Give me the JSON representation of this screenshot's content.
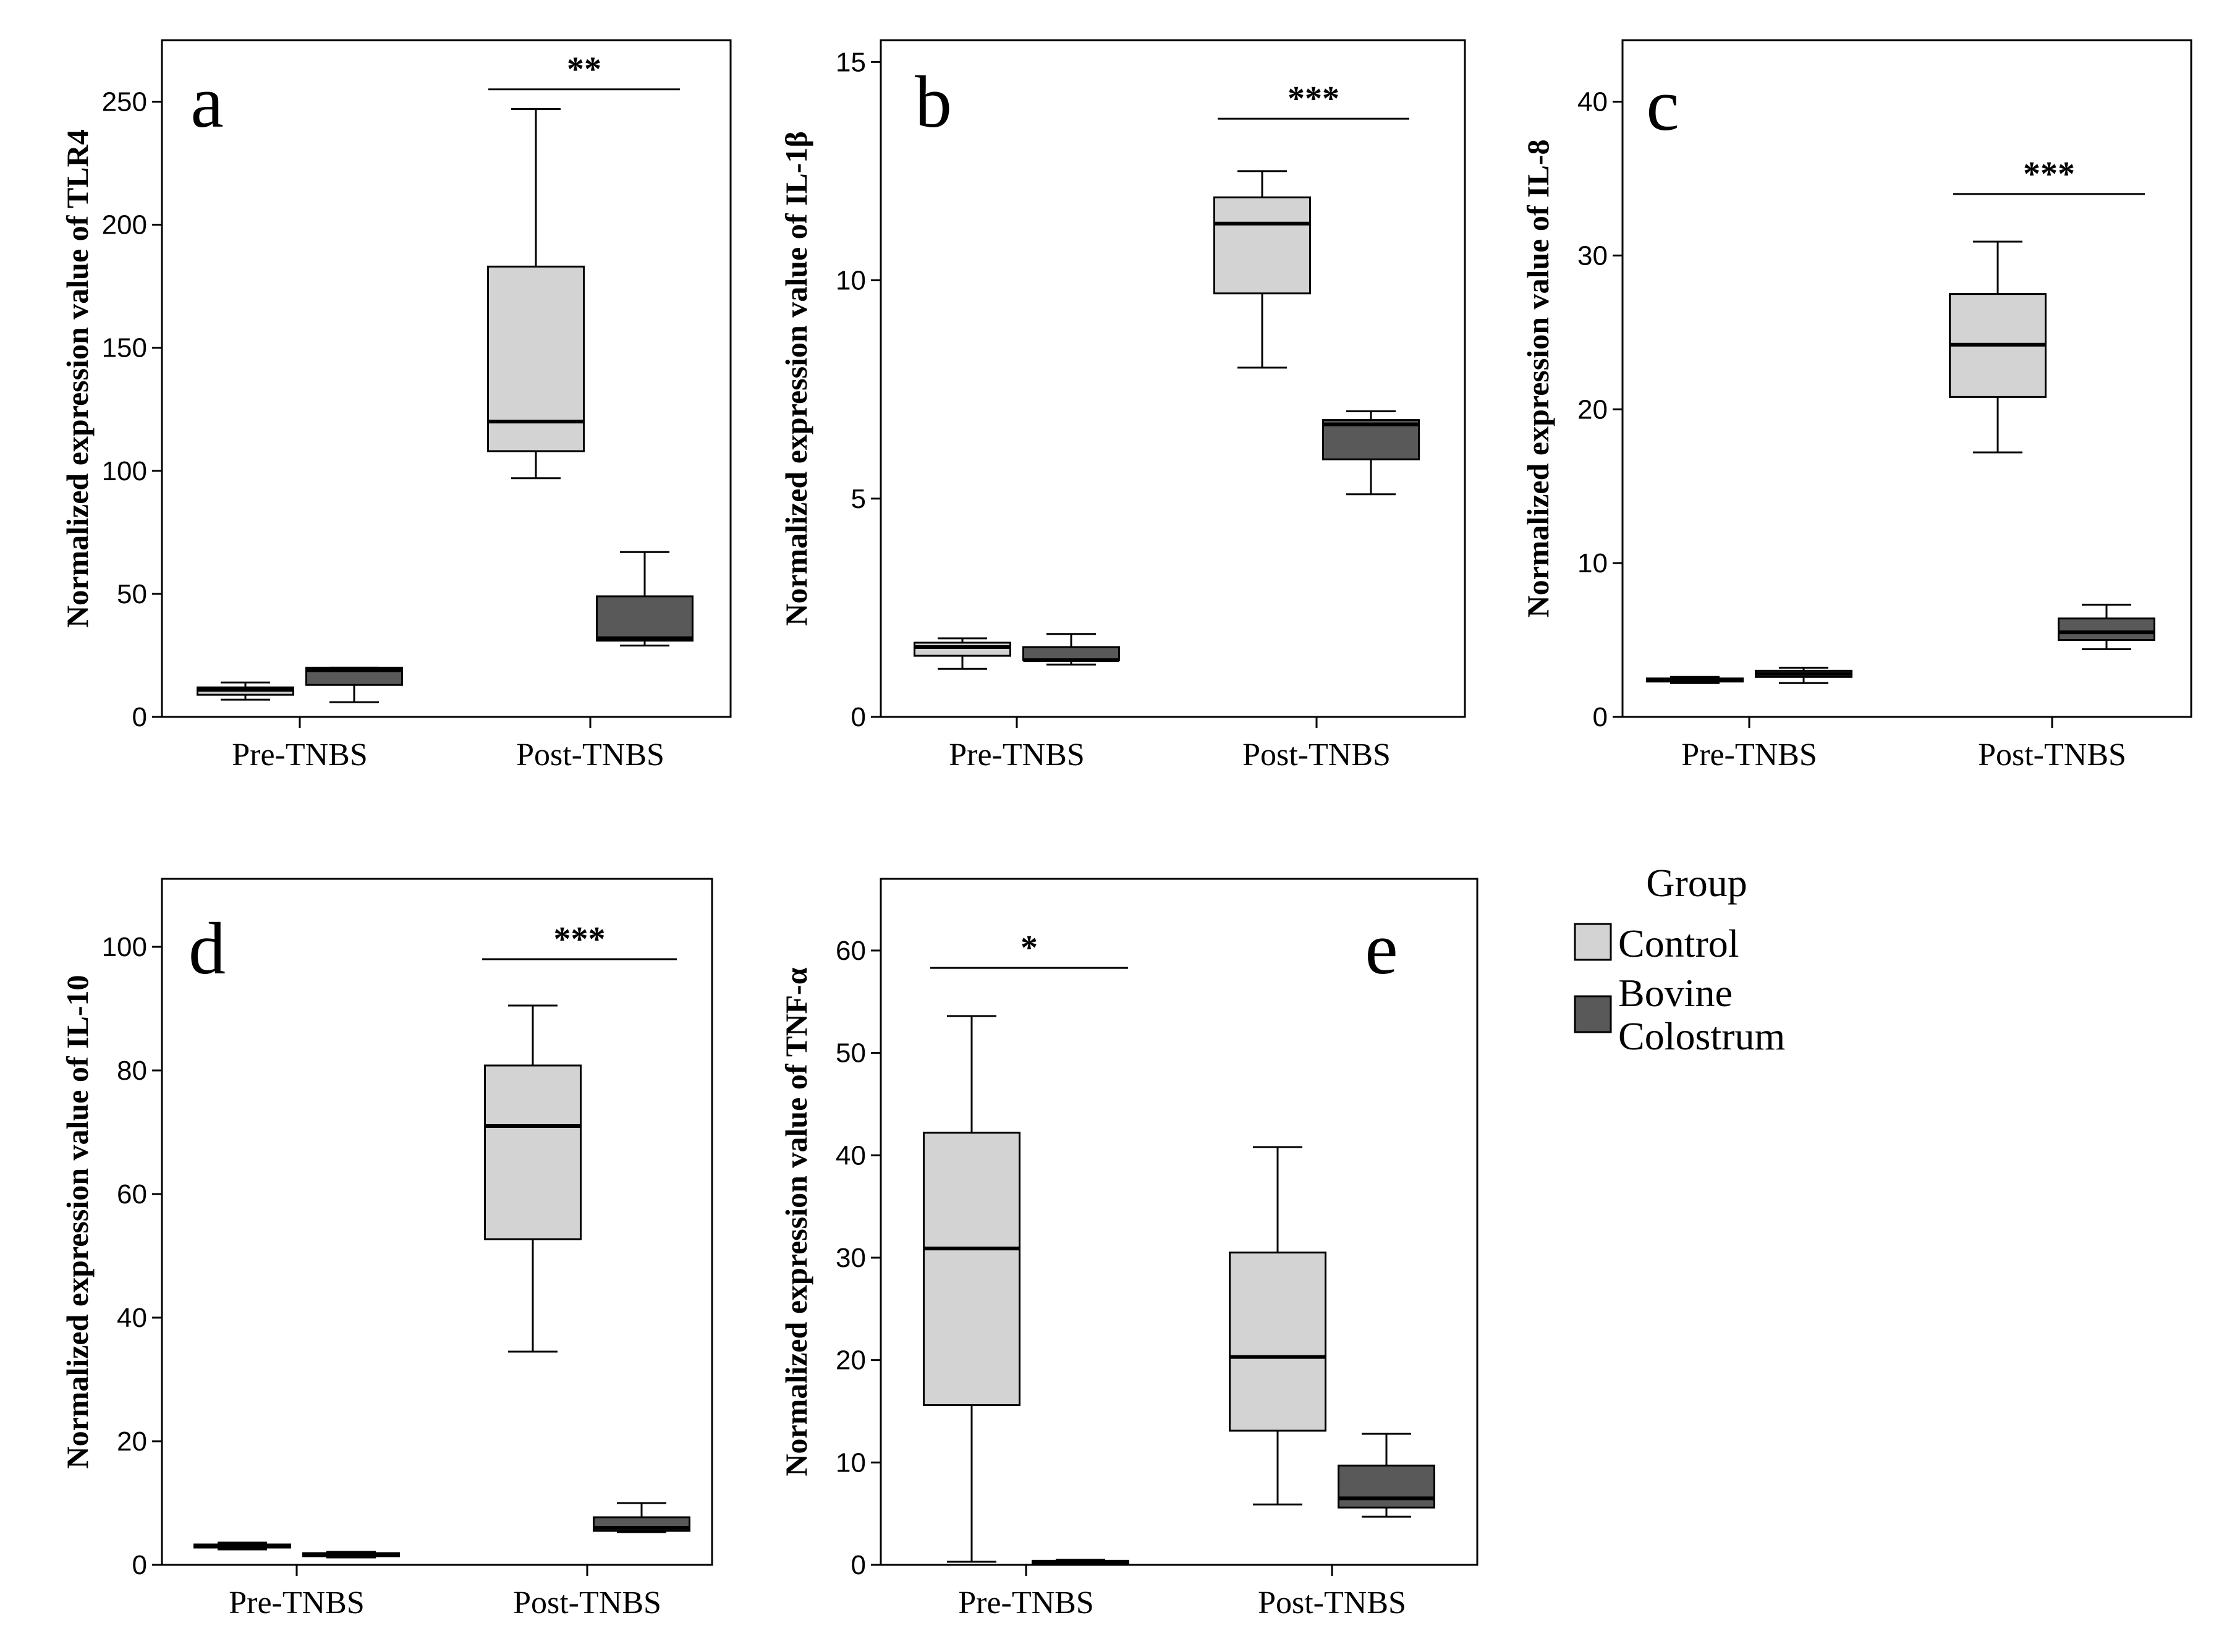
{
  "legend": {
    "title": "Group",
    "items": [
      {
        "label_lines": [
          "Control"
        ],
        "color": "#d3d3d3"
      },
      {
        "label_lines": [
          "Bovine",
          "Colostrum"
        ],
        "color": "#595959"
      }
    ]
  },
  "chart_data": [
    {
      "type": "box",
      "panel_letter": "a",
      "ylabel": "Normalized expression value of TLR4",
      "categories": [
        "Pre-TNBS",
        "Post-TNBS"
      ],
      "ylim": [
        0,
        275
      ],
      "yticks": [
        0,
        50,
        100,
        150,
        200,
        250
      ],
      "series": [
        {
          "name": "Control",
          "boxes": [
            {
              "min": 7,
              "q1": 9,
              "median": 11,
              "q3": 12,
              "max": 14
            },
            {
              "min": 97,
              "q1": 108,
              "median": 120,
              "q3": 183,
              "max": 247
            }
          ]
        },
        {
          "name": "Bovine Colostrum",
          "boxes": [
            {
              "min": 6,
              "q1": 13,
              "median": 19,
              "q3": 20,
              "max": 20
            },
            {
              "min": 29,
              "q1": 31,
              "median": 32,
              "q3": 49,
              "max": 67
            }
          ]
        }
      ],
      "significance": {
        "category": 1,
        "label": "**",
        "value": 255
      }
    },
    {
      "type": "box",
      "panel_letter": "b",
      "ylabel": "Normalized expression value of IL-1β",
      "categories": [
        "Pre-TNBS",
        "Post-TNBS"
      ],
      "ylim": [
        0,
        15.5
      ],
      "yticks": [
        0,
        5,
        10,
        15
      ],
      "series": [
        {
          "name": "Control",
          "boxes": [
            {
              "min": 1.1,
              "q1": 1.4,
              "median": 1.6,
              "q3": 1.7,
              "max": 1.8
            },
            {
              "min": 8.0,
              "q1": 9.7,
              "median": 11.3,
              "q3": 11.9,
              "max": 12.5
            }
          ]
        },
        {
          "name": "Bovine Colostrum",
          "boxes": [
            {
              "min": 1.2,
              "q1": 1.3,
              "median": 1.3,
              "q3": 1.6,
              "max": 1.9
            },
            {
              "min": 5.1,
              "q1": 5.9,
              "median": 6.7,
              "q3": 6.8,
              "max": 7.0
            }
          ]
        }
      ],
      "significance": {
        "category": 1,
        "label": "***",
        "value": 13.7
      }
    },
    {
      "type": "box",
      "panel_letter": "c",
      "ylabel": "Normalized expression value of IL-8",
      "categories": [
        "Pre-TNBS",
        "Post-TNBS"
      ],
      "ylim": [
        0,
        44
      ],
      "yticks": [
        0,
        10,
        20,
        30,
        40
      ],
      "series": [
        {
          "name": "Control",
          "boxes": [
            {
              "min": 2.2,
              "q1": 2.3,
              "median": 2.4,
              "q3": 2.5,
              "max": 2.6
            },
            {
              "min": 17.2,
              "q1": 20.8,
              "median": 24.2,
              "q3": 27.5,
              "max": 30.9
            }
          ]
        },
        {
          "name": "Bovine Colostrum",
          "boxes": [
            {
              "min": 2.2,
              "q1": 2.6,
              "median": 2.8,
              "q3": 3.0,
              "max": 3.2
            },
            {
              "min": 4.4,
              "q1": 5.0,
              "median": 5.5,
              "q3": 6.4,
              "max": 7.3
            }
          ]
        }
      ],
      "significance": {
        "category": 1,
        "label": "***",
        "value": 34
      }
    },
    {
      "type": "box",
      "panel_letter": "d",
      "ylabel": "Normalized expression value of IL-10",
      "categories": [
        "Pre-TNBS",
        "Post-TNBS"
      ],
      "ylim": [
        0,
        111
      ],
      "yticks": [
        0,
        20,
        40,
        60,
        80,
        100
      ],
      "series": [
        {
          "name": "Control",
          "boxes": [
            {
              "min": 2.5,
              "q1": 2.8,
              "median": 3.0,
              "q3": 3.3,
              "max": 3.6
            },
            {
              "min": 34.5,
              "q1": 52.7,
              "median": 71.0,
              "q3": 80.8,
              "max": 90.5
            }
          ]
        },
        {
          "name": "Bovine Colostrum",
          "boxes": [
            {
              "min": 1.2,
              "q1": 1.4,
              "median": 1.6,
              "q3": 1.9,
              "max": 2.1
            },
            {
              "min": 5.3,
              "q1": 5.5,
              "median": 6.0,
              "q3": 7.7,
              "max": 10.0
            }
          ]
        }
      ],
      "significance": {
        "category": 1,
        "label": "***",
        "value": 98
      }
    },
    {
      "type": "box",
      "panel_letter": "e",
      "ylabel": "Normalized expression value of TNF-α",
      "categories": [
        "Pre-TNBS",
        "Post-TNBS"
      ],
      "ylim": [
        0,
        67
      ],
      "yticks": [
        0,
        10,
        20,
        30,
        40,
        50,
        60
      ],
      "series": [
        {
          "name": "Control",
          "boxes": [
            {
              "min": 0.3,
              "q1": 15.6,
              "median": 30.9,
              "q3": 42.2,
              "max": 53.6
            },
            {
              "min": 5.9,
              "q1": 13.1,
              "median": 20.3,
              "q3": 30.5,
              "max": 40.8
            }
          ]
        },
        {
          "name": "Bovine Colostrum",
          "boxes": [
            {
              "min": 0.2,
              "q1": 0.3,
              "median": 0.3,
              "q3": 0.4,
              "max": 0.5
            },
            {
              "min": 4.7,
              "q1": 5.6,
              "median": 6.5,
              "q3": 9.7,
              "max": 12.8
            }
          ]
        }
      ],
      "significance": {
        "category": 0,
        "label": "*",
        "value": 58.3
      }
    }
  ]
}
